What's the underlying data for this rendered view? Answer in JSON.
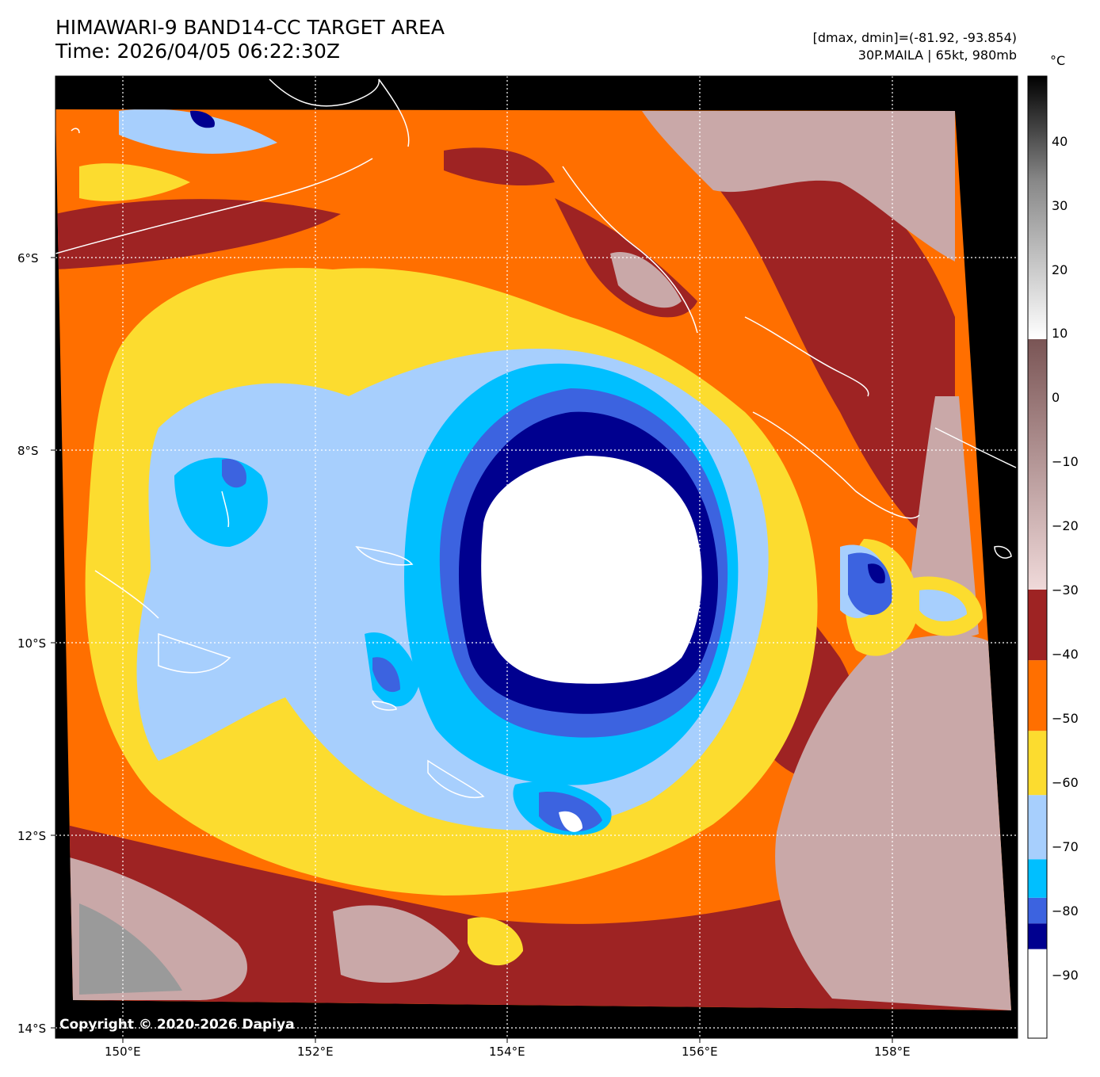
{
  "title": {
    "line1": "HIMAWARI-9 BAND14-CC TARGET AREA",
    "line2": "Time: 2026/04/05 06:22:30Z"
  },
  "info": {
    "dmax_dmin": "[dmax, dmin]=(-81.92, -93.854)",
    "storm": "30P.MAILA | 65kt, 980mb"
  },
  "colorbar": {
    "unit": "°C",
    "ticks": [
      "40",
      "30",
      "20",
      "10",
      "0",
      "−10",
      "−20",
      "−30",
      "−40",
      "−50",
      "−60",
      "−70",
      "−80",
      "−90"
    ],
    "bands": [
      {
        "from": -100,
        "to": -86,
        "color": "#ffffff"
      },
      {
        "from": -86,
        "to": -82,
        "color": "#00008f"
      },
      {
        "from": -82,
        "to": -78,
        "color": "#3c63e0"
      },
      {
        "from": -78,
        "to": -72,
        "color": "#00bfff"
      },
      {
        "from": -72,
        "to": -62,
        "color": "#a7cffd"
      },
      {
        "from": -62,
        "to": -52,
        "color": "#fcdc2f"
      },
      {
        "from": -52,
        "to": -41,
        "color": "#ff6f00"
      },
      {
        "from": -41,
        "to": -30,
        "color": "#9e2323"
      }
    ]
  },
  "axes": {
    "lat_labels": [
      "6°S",
      "8°S",
      "10°S",
      "12°S",
      "14°S"
    ],
    "lon_labels": [
      "150°E",
      "152°E",
      "154°E",
      "156°E",
      "158°E"
    ]
  },
  "colors": {
    "eye": "#ffffff",
    "eyewall": "#00008f",
    "deep": "#3c63e0",
    "cyan": "#00bfff",
    "lightblue": "#a7cffd",
    "yellow": "#fcdc2f",
    "orange": "#ff6f00",
    "darkred": "#9e2323",
    "warm": "#c9a8a8",
    "background": "#000000"
  },
  "copyright": "Copyright © 2020-2026 Dapiya"
}
